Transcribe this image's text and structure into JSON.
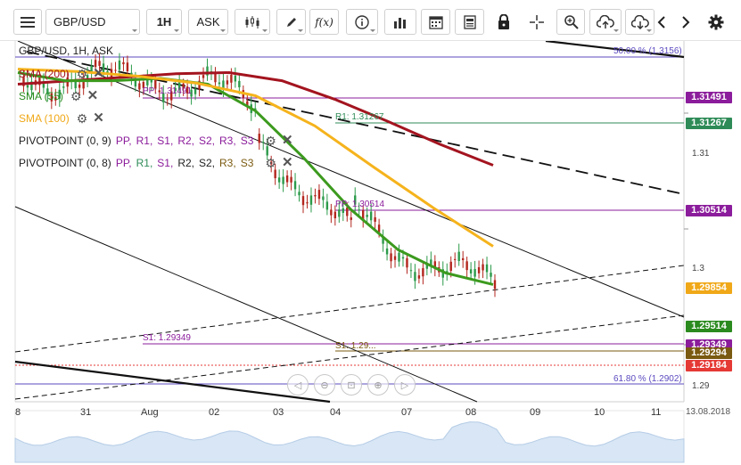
{
  "toolbar": {
    "menu_icon": "hamburger-menu-icon",
    "symbol": "GBP/USD",
    "timeframe": "1H",
    "price_side": "ASK",
    "chart_type_icon": "candlestick-icon",
    "draw_icon": "pencil-icon",
    "indicator_label": "f(x)",
    "info_icon": "info-icon",
    "volume_icon": "bar-chart-icon",
    "calendar_icon": "calendar-icon",
    "news_icon": "news-icon",
    "lock_icon": "lock-icon",
    "crosshair_icon": "crosshair-icon",
    "zoom_icon": "zoom-icon",
    "upload_icon": "cloud-upload-icon",
    "download_icon": "cloud-download-icon",
    "prev_icon": "chevron-left-icon",
    "next_icon": "chevron-right-icon",
    "settings_icon": "gear-icon"
  },
  "legend": {
    "title": "GBP/USD, 1H, ASK",
    "sma200": "SMA (200)",
    "sma55": "SMA (55)",
    "sma100": "SMA (100)",
    "pivot1_name": "PIVOTPOINT (0, 9)",
    "pivot2_name": "PIVOTPOINT (0, 8)",
    "pivot_parts": [
      "PP,",
      "R1,",
      "S1,",
      "R2,",
      "S2,",
      "R3,",
      "S3"
    ]
  },
  "chart_data": {
    "type": "line",
    "symbol": "GBP/USD",
    "timeframe": "1H",
    "y_ticks": [
      1.29,
      1.3,
      1.31
    ],
    "x_ticks": [
      "8",
      "31",
      "Aug",
      "02",
      "03",
      "04",
      "07",
      "08",
      "09",
      "10",
      "11"
    ],
    "corner_date": "13.08.2018",
    "current_price": 1.29184,
    "levels": {
      "pp_upper": "PP: 1.31491",
      "r1": "R1: 1.31267",
      "pp_lower": "PP: 1.30514",
      "s1_left": "S1: 1.29349",
      "s1_mid": "S1: 1.29...",
      "fib50": "50.00 % (1.3156)",
      "fib618": "61.80 % (1.2902)"
    },
    "price_tags": [
      {
        "value": "1.31491",
        "color": "#8b1c9b"
      },
      {
        "value": "1.31267",
        "color": "#2e8b57"
      },
      {
        "value": "1.30514",
        "color": "#8b1c9b"
      },
      {
        "value": "1.29854",
        "color": "#f0a818"
      },
      {
        "value": "1.29514",
        "color": "#2a8a1e"
      },
      {
        "value": "1.29349",
        "color": "#8b1c9b"
      },
      {
        "value": "1.29294",
        "color": "#7a5a10"
      },
      {
        "value": "1.29184",
        "color": "#e53935"
      }
    ],
    "series": [
      {
        "name": "SMA (200)",
        "color": "#a3141f",
        "values": [
          1.3125,
          1.3128,
          1.3131,
          1.3134,
          1.3135,
          1.3128,
          1.3112,
          1.3093,
          1.3073,
          1.3055
        ]
      },
      {
        "name": "SMA (55)",
        "color": "#3c9a1e",
        "values": [
          1.3135,
          1.3128,
          1.3128,
          1.313,
          1.3125,
          1.3102,
          1.3062,
          1.3017,
          1.2982,
          1.2962,
          1.2952
        ]
      },
      {
        "name": "SMA (100)",
        "color": "#f5b31c",
        "values": [
          1.3138,
          1.3136,
          1.3132,
          1.3126,
          1.3115,
          1.3089,
          1.3053,
          1.3018,
          1.2985
        ]
      }
    ]
  },
  "navigator": {
    "prev_icon": "arrow-left-icon",
    "zoom_out_icon": "zoom-out-icon",
    "fit_icon": "fit-icon",
    "zoom_in_icon": "zoom-in-icon",
    "next_icon": "arrow-right-icon"
  }
}
